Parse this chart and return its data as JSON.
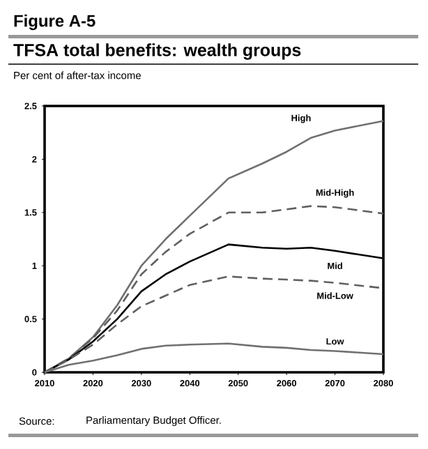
{
  "chart_data": {
    "type": "line",
    "title": "TFSA total benefits: wealth groups",
    "subtitle": "Per cent of after-tax income",
    "annotations": [
      "Figure A-5",
      "Source:",
      "Parliamentary Budget Officer."
    ],
    "x": [
      2010,
      2015,
      2020,
      2025,
      2030,
      2035,
      2040,
      2048,
      2055,
      2060,
      2065,
      2070,
      2080
    ],
    "xlim": [
      2010,
      2080
    ],
    "xticks": [
      2010,
      2020,
      2030,
      2040,
      2050,
      2060,
      2070,
      2080
    ],
    "ylim": [
      0,
      2.5
    ],
    "yticks": [
      0,
      0.5,
      1,
      1.5,
      2,
      2.5
    ],
    "grid": false,
    "legend": false,
    "marker": "none",
    "series": [
      {
        "name": "High",
        "color": "#707070",
        "line_style": "solid",
        "values": [
          0,
          0.13,
          0.33,
          0.63,
          1.0,
          1.25,
          1.47,
          1.82,
          1.96,
          2.07,
          2.2,
          2.27,
          2.36
        ]
      },
      {
        "name": "Mid-High",
        "color": "#606060",
        "line_style": "dashed",
        "values": [
          0,
          0.13,
          0.32,
          0.58,
          0.92,
          1.13,
          1.3,
          1.5,
          1.5,
          1.53,
          1.56,
          1.55,
          1.49
        ]
      },
      {
        "name": "Mid",
        "color": "#000000",
        "line_style": "solid",
        "values": [
          0,
          0.12,
          0.29,
          0.5,
          0.76,
          0.92,
          1.04,
          1.2,
          1.17,
          1.16,
          1.17,
          1.14,
          1.07
        ]
      },
      {
        "name": "Mid-Low",
        "color": "#606060",
        "line_style": "dashed",
        "values": [
          0,
          0.12,
          0.26,
          0.45,
          0.62,
          0.72,
          0.82,
          0.9,
          0.88,
          0.87,
          0.86,
          0.84,
          0.79
        ]
      },
      {
        "name": "Low",
        "color": "#707070",
        "line_style": "solid",
        "values": [
          0,
          0.07,
          0.11,
          0.16,
          0.22,
          0.25,
          0.26,
          0.27,
          0.24,
          0.23,
          0.21,
          0.2,
          0.17
        ]
      }
    ]
  }
}
